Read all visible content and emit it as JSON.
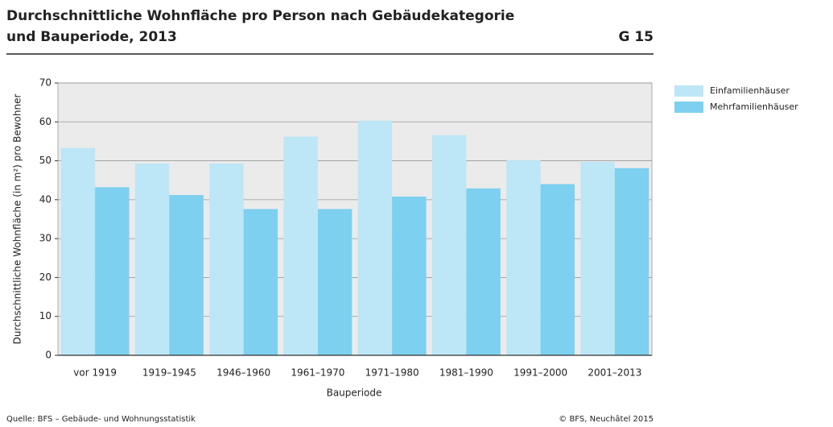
{
  "chart_data": {
    "type": "bar",
    "title": [
      "Durchschnittliche Wohnfläche pro Person nach Gebäudekategorie",
      "und Bauperiode, 2013"
    ],
    "figure_number": "G 15",
    "categories": [
      "vor 1919",
      "1919–1945",
      "1946–1960",
      "1961–1970",
      "1971–1980",
      "1981–1990",
      "1991–2000",
      "2001–2013"
    ],
    "series": [
      {
        "name": "Einfamilienhäuser",
        "color": "#bde6f6",
        "values": [
          53.3,
          49.3,
          49.3,
          56.2,
          60.3,
          56.6,
          50.1,
          49.7
        ]
      },
      {
        "name": "Mehrfamilienhäuser",
        "color": "#7dd0ef",
        "values": [
          43.2,
          41.2,
          37.6,
          37.6,
          40.8,
          42.9,
          44.0,
          48.1
        ]
      }
    ],
    "x_label": "Bauperiode",
    "y_label": "Durchschnittliche Wohnfläche (in m²) pro Bewohner",
    "ylim": [
      0,
      70
    ],
    "yticks": [
      0,
      10,
      20,
      30,
      40,
      50,
      60,
      70
    ],
    "grid": true,
    "legend": "right",
    "source": "Quelle: BFS – Gebäude- und Wohnungsstatistik",
    "copyright": "© BFS, Neuchâtel 2015"
  }
}
